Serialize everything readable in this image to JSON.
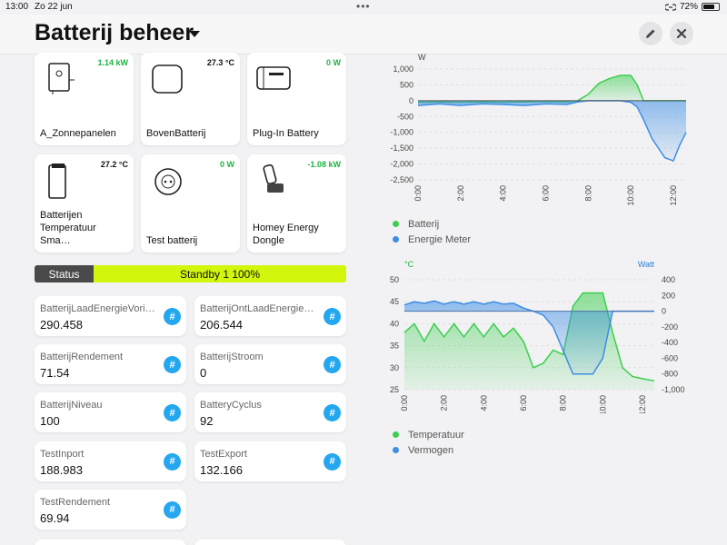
{
  "statusbar": {
    "time": "13:00",
    "date": "Zo 22 jun",
    "battery": "72%"
  },
  "header": {
    "title": "Batterij beheer"
  },
  "devices": [
    {
      "name": "A_Zonnepanelen",
      "value": "1.14 kW",
      "value_color": "#1db440",
      "icon": "inverter-icon"
    },
    {
      "name": "BovenBatterij",
      "value": "27.3 °C",
      "value_color": "#111111",
      "icon": "battery-box-icon"
    },
    {
      "name": "Plug-In Battery",
      "value": "0 W",
      "value_color": "#1db440",
      "icon": "plugin-battery-icon"
    },
    {
      "name": "Batterijen Temperatuur Sma…",
      "value": "27.2 °C",
      "value_color": "#111111",
      "icon": "temp-sensor-icon"
    },
    {
      "name": "Test batterij",
      "value": "0 W",
      "value_color": "#1db440",
      "icon": "smart-plug-icon"
    },
    {
      "name": "Homey Energy Dongle",
      "value": "-1.08 kW",
      "value_color": "#1db440",
      "icon": "dongle-icon"
    }
  ],
  "status": {
    "label": "Status",
    "value": "Standby 1 100%",
    "color": "#d4f50c"
  },
  "tiles": [
    {
      "label": "BatterijLaadEnergieVorig…",
      "value": "290.458"
    },
    {
      "label": "BatterijOntLaadEnergieV…",
      "value": "206.544"
    },
    {
      "label": "BatterijRendement",
      "value": "71.54"
    },
    {
      "label": "BatterijStroom",
      "value": "0"
    },
    {
      "label": "BatterijNiveau",
      "value": "100"
    },
    {
      "label": "BatteryCyclus",
      "value": "92"
    },
    {
      "label": "TestInport",
      "value": "188.983"
    },
    {
      "label": "TestExport",
      "value": "132.166"
    },
    {
      "label": "TestRendement",
      "value": "69.94"
    }
  ],
  "tile_icon": "#",
  "chart_data": [
    {
      "type": "area",
      "ylabel": "W",
      "ylim": [
        -2500,
        1000
      ],
      "yticks": [
        "1,000",
        "500",
        "0",
        "-500",
        "-1,000",
        "-1,500",
        "-2,000",
        "-2,500"
      ],
      "xticks": [
        "0:00",
        "2:00",
        "4:00",
        "6:00",
        "8:00",
        "10:00",
        "12:00"
      ],
      "legend": "bottom-left",
      "series": [
        {
          "name": "Batterij",
          "color": "#3ccf4e",
          "x": [
            0,
            1,
            2,
            3,
            4,
            5,
            6,
            7,
            7.5,
            8,
            8.5,
            9,
            9.5,
            10,
            10.3,
            10.6,
            11,
            11.5,
            12,
            12.6
          ],
          "values": [
            -50,
            -40,
            -50,
            -40,
            -50,
            -40,
            -30,
            -40,
            0,
            200,
            550,
            700,
            800,
            800,
            500,
            0,
            0,
            0,
            0,
            0
          ]
        },
        {
          "name": "Energie Meter",
          "color": "#3d8ee6",
          "x": [
            0,
            1,
            2,
            3,
            4,
            5,
            6,
            7,
            7.5,
            8,
            8.5,
            9,
            9.5,
            10,
            10.3,
            10.6,
            11,
            11.3,
            11.6,
            12,
            12.3,
            12.6
          ],
          "values": [
            -150,
            -100,
            -150,
            -100,
            -120,
            -150,
            -100,
            -120,
            -40,
            0,
            0,
            0,
            0,
            -50,
            -200,
            -600,
            -1200,
            -1500,
            -1800,
            -1900,
            -1400,
            -1000
          ]
        }
      ]
    },
    {
      "type": "area",
      "ylabel_left": "°C",
      "ylabel_right": "Watt",
      "ylim_left": [
        25,
        50
      ],
      "ylim_right": [
        -1000,
        400
      ],
      "yticks_left": [
        "50",
        "45",
        "40",
        "35",
        "30",
        "25"
      ],
      "yticks_right": [
        "400",
        "200",
        "0",
        "-200",
        "-400",
        "-600",
        "-800",
        "-1,000"
      ],
      "xticks": [
        "0:00",
        "2:00",
        "4:00",
        "6:00",
        "8:00",
        "10:00",
        "12:00"
      ],
      "legend": "bottom-left",
      "series": [
        {
          "name": "Temperatuur",
          "color": "#3ccf4e",
          "axis": "left",
          "x": [
            0,
            0.5,
            1,
            1.5,
            2,
            2.5,
            3,
            3.5,
            4,
            4.5,
            5,
            5.5,
            6,
            6.5,
            7,
            7.5,
            8,
            8.5,
            9,
            9.5,
            10,
            10.5,
            11,
            11.5,
            12,
            12.6
          ],
          "values": [
            38,
            40,
            36,
            40,
            37,
            40,
            37,
            40,
            37,
            40,
            37,
            39,
            36,
            30,
            31,
            34,
            33,
            44,
            47,
            47,
            47,
            38,
            30,
            28,
            27.5,
            27
          ]
        },
        {
          "name": "Vermogen",
          "color": "#3d8ee6",
          "axis": "right",
          "x": [
            0,
            0.5,
            1,
            1.5,
            2,
            2.5,
            3,
            3.5,
            4,
            4.5,
            5,
            5.5,
            6,
            6.5,
            7,
            7.5,
            8,
            8.5,
            9,
            9.5,
            10,
            10.5,
            11,
            11.5,
            12,
            12.6
          ],
          "values": [
            80,
            120,
            100,
            130,
            90,
            120,
            90,
            120,
            90,
            120,
            90,
            100,
            40,
            0,
            -50,
            -200,
            -500,
            -800,
            -800,
            -800,
            -600,
            0,
            0,
            0,
            0,
            0
          ]
        }
      ]
    }
  ]
}
